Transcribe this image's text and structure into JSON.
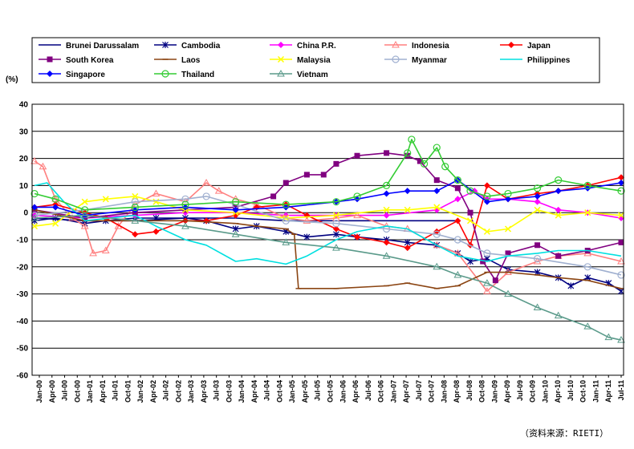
{
  "chart_data": {
    "type": "line",
    "ylabel": "(%)",
    "source": "（资料来源：RIETI）",
    "ylim": [
      -60,
      40
    ],
    "yticks": [
      40,
      30,
      20,
      10,
      0,
      -10,
      -20,
      -30,
      -40,
      -50,
      -60
    ],
    "xticks": [
      "Jan-00",
      "Apr-00",
      "Jul-00",
      "Oct-00",
      "Jan-01",
      "Apr-01",
      "Jul-01",
      "Oct-01",
      "Jan-02",
      "Apr-02",
      "Jul-02",
      "Oct-02",
      "Jan-03",
      "Apr-03",
      "Jul-03",
      "Oct-03",
      "Jan-04",
      "Apr-04",
      "Jul-04",
      "Oct-04",
      "Jan-05",
      "Apr-05",
      "Jul-05",
      "Oct-05",
      "Jan-06",
      "Apr-06",
      "Jul-06",
      "Oct-06",
      "Jan-07",
      "Apr-07",
      "Jul-07",
      "Oct-07",
      "Jan-08",
      "Apr-08",
      "Jul-08",
      "Oct-08",
      "Jan-09",
      "Apr-09",
      "Jul-09",
      "Oct-09",
      "Jan-10",
      "Apr-10",
      "Jul-10",
      "Oct-10",
      "Jan-11",
      "Apr-11",
      "Jul-11"
    ],
    "x_range": [
      "2000-01",
      "2011-09"
    ],
    "grid": "horizontal",
    "legend": "top",
    "series": [
      {
        "name": "Brunei Darussalam",
        "color": "#000080",
        "marker": "none",
        "points": [
          [
            "2000-01",
            -2
          ],
          [
            "2001-01",
            -3
          ],
          [
            "2002-01",
            -3
          ],
          [
            "2003-01",
            -2
          ],
          [
            "2004-01",
            -2
          ],
          [
            "2005-01",
            -3
          ],
          [
            "2006-01",
            -3
          ],
          [
            "2007-01",
            -3
          ],
          [
            "2008-01",
            -3
          ],
          [
            "2008-06",
            -3
          ]
        ]
      },
      {
        "name": "Cambodia",
        "color": "#000080",
        "marker": "asterisk",
        "points": [
          [
            "2000-01",
            -3
          ],
          [
            "2000-06",
            -2
          ],
          [
            "2001-01",
            -4
          ],
          [
            "2001-06",
            -3
          ],
          [
            "2002-01",
            -2
          ],
          [
            "2002-06",
            -2
          ],
          [
            "2003-01",
            -2
          ],
          [
            "2003-06",
            -3
          ],
          [
            "2004-01",
            -6
          ],
          [
            "2004-06",
            -5
          ],
          [
            "2005-01",
            -7
          ],
          [
            "2005-06",
            -9
          ],
          [
            "2006-01",
            -8
          ],
          [
            "2006-06",
            -9
          ],
          [
            "2007-01",
            -10
          ],
          [
            "2007-06",
            -11
          ],
          [
            "2008-01",
            -12
          ],
          [
            "2008-06",
            -15
          ],
          [
            "2008-09",
            -18
          ],
          [
            "2009-01",
            -17
          ],
          [
            "2009-06",
            -21
          ],
          [
            "2010-01",
            -22
          ],
          [
            "2010-06",
            -24
          ],
          [
            "2010-09",
            -27
          ],
          [
            "2011-01",
            -24
          ],
          [
            "2011-06",
            -26
          ],
          [
            "2011-09",
            -29
          ]
        ]
      },
      {
        "name": "China P.R.",
        "color": "#ff00ff",
        "marker": "diamond",
        "points": [
          [
            "2000-01",
            -1
          ],
          [
            "2001-01",
            -2
          ],
          [
            "2002-01",
            -1
          ],
          [
            "2003-01",
            0
          ],
          [
            "2004-01",
            0
          ],
          [
            "2005-01",
            -1
          ],
          [
            "2006-01",
            -1
          ],
          [
            "2007-01",
            -1
          ],
          [
            "2008-01",
            1
          ],
          [
            "2008-06",
            5
          ],
          [
            "2008-10",
            8
          ],
          [
            "2009-01",
            5
          ],
          [
            "2009-06",
            5
          ],
          [
            "2010-01",
            4
          ],
          [
            "2010-06",
            1
          ],
          [
            "2011-01",
            0
          ],
          [
            "2011-09",
            -2
          ]
        ]
      },
      {
        "name": "Indonesia",
        "color": "#ff7f7f",
        "marker": "triangle",
        "points": [
          [
            "2000-01",
            19
          ],
          [
            "2000-03",
            17
          ],
          [
            "2000-06",
            5
          ],
          [
            "2000-10",
            -2
          ],
          [
            "2001-01",
            -5
          ],
          [
            "2001-03",
            -15
          ],
          [
            "2001-06",
            -14
          ],
          [
            "2001-09",
            -5
          ],
          [
            "2002-01",
            3
          ],
          [
            "2002-06",
            7
          ],
          [
            "2003-01",
            4
          ],
          [
            "2003-06",
            11
          ],
          [
            "2003-09",
            8
          ],
          [
            "2004-01",
            5
          ],
          [
            "2004-06",
            3
          ],
          [
            "2005-01",
            -2
          ],
          [
            "2005-06",
            -3
          ],
          [
            "2006-01",
            -2
          ],
          [
            "2006-06",
            -1
          ],
          [
            "2007-01",
            -5
          ],
          [
            "2007-06",
            -6
          ],
          [
            "2008-01",
            -12
          ],
          [
            "2008-06",
            -15
          ],
          [
            "2009-01",
            -29
          ],
          [
            "2009-06",
            -22
          ],
          [
            "2010-01",
            -18
          ],
          [
            "2010-06",
            -16
          ],
          [
            "2011-01",
            -15
          ],
          [
            "2011-09",
            -18
          ]
        ]
      },
      {
        "name": "Japan",
        "color": "#ff0000",
        "marker": "diamond",
        "points": [
          [
            "2000-01",
            2
          ],
          [
            "2000-06",
            3
          ],
          [
            "2001-01",
            0
          ],
          [
            "2001-06",
            -2
          ],
          [
            "2002-01",
            -8
          ],
          [
            "2002-06",
            -7
          ],
          [
            "2003-01",
            -3
          ],
          [
            "2003-06",
            -3
          ],
          [
            "2004-01",
            -1
          ],
          [
            "2004-06",
            2
          ],
          [
            "2005-01",
            3
          ],
          [
            "2005-06",
            -1
          ],
          [
            "2006-01",
            -6
          ],
          [
            "2006-06",
            -9
          ],
          [
            "2007-01",
            -11
          ],
          [
            "2007-06",
            -13
          ],
          [
            "2008-01",
            -7
          ],
          [
            "2008-06",
            -3
          ],
          [
            "2008-09",
            -12
          ],
          [
            "2009-01",
            10
          ],
          [
            "2009-06",
            5
          ],
          [
            "2010-01",
            7
          ],
          [
            "2010-06",
            8
          ],
          [
            "2011-01",
            10
          ],
          [
            "2011-09",
            13
          ]
        ]
      },
      {
        "name": "South Korea",
        "color": "#800080",
        "marker": "square",
        "points": [
          [
            "2000-01",
            1
          ],
          [
            "2001-01",
            -2
          ],
          [
            "2002-01",
            0
          ],
          [
            "2003-01",
            1
          ],
          [
            "2004-01",
            2
          ],
          [
            "2004-10",
            6
          ],
          [
            "2005-01",
            11
          ],
          [
            "2005-06",
            14
          ],
          [
            "2005-10",
            14
          ],
          [
            "2006-01",
            18
          ],
          [
            "2006-06",
            21
          ],
          [
            "2007-01",
            22
          ],
          [
            "2007-06",
            21
          ],
          [
            "2007-09",
            19
          ],
          [
            "2008-01",
            12
          ],
          [
            "2008-06",
            9
          ],
          [
            "2008-09",
            0
          ],
          [
            "2008-12",
            -18
          ],
          [
            "2009-03",
            -25
          ],
          [
            "2009-06",
            -15
          ],
          [
            "2010-01",
            -12
          ],
          [
            "2010-06",
            -16
          ],
          [
            "2011-01",
            -14
          ],
          [
            "2011-09",
            -11
          ]
        ]
      },
      {
        "name": "Laos",
        "color": "#8b4513",
        "marker": "dash",
        "points": [
          [
            "2000-01",
            1
          ],
          [
            "2001-01",
            -3
          ],
          [
            "2002-01",
            -3
          ],
          [
            "2003-01",
            -3
          ],
          [
            "2004-01",
            -4
          ],
          [
            "2004-06",
            -5
          ],
          [
            "2005-01",
            -6
          ],
          [
            "2005-03",
            -8
          ],
          [
            "2005-04",
            -28
          ],
          [
            "2006-01",
            -28
          ],
          [
            "2007-01",
            -27
          ],
          [
            "2007-06",
            -26
          ],
          [
            "2008-01",
            -28
          ],
          [
            "2008-06",
            -27
          ],
          [
            "2009-01",
            -22
          ],
          [
            "2009-06",
            -22
          ],
          [
            "2010-01",
            -23
          ],
          [
            "2010-06",
            -24
          ],
          [
            "2011-01",
            -25
          ],
          [
            "2011-09",
            -28
          ]
        ]
      },
      {
        "name": "Malaysia",
        "color": "#ffff00",
        "marker": "x",
        "points": [
          [
            "2000-01",
            -5
          ],
          [
            "2000-06",
            -4
          ],
          [
            "2001-01",
            4
          ],
          [
            "2001-06",
            5
          ],
          [
            "2002-01",
            6
          ],
          [
            "2002-06",
            4
          ],
          [
            "2003-01",
            1
          ],
          [
            "2004-01",
            0
          ],
          [
            "2005-01",
            -2
          ],
          [
            "2006-01",
            -1
          ],
          [
            "2007-01",
            1
          ],
          [
            "2007-06",
            1
          ],
          [
            "2008-01",
            2
          ],
          [
            "2008-09",
            -3
          ],
          [
            "2009-01",
            -7
          ],
          [
            "2009-06",
            -6
          ],
          [
            "2010-01",
            1
          ],
          [
            "2010-06",
            -1
          ],
          [
            "2011-01",
            0
          ],
          [
            "2011-09",
            -1
          ]
        ]
      },
      {
        "name": "Myanmar",
        "color": "#a0b0d0",
        "marker": "circle",
        "points": [
          [
            "2000-01",
            -1
          ],
          [
            "2001-01",
            1
          ],
          [
            "2002-01",
            4
          ],
          [
            "2003-01",
            5
          ],
          [
            "2003-06",
            6
          ],
          [
            "2004-01",
            3
          ],
          [
            "2005-01",
            -3
          ],
          [
            "2006-01",
            -4
          ],
          [
            "2007-01",
            -6
          ],
          [
            "2008-01",
            -8
          ],
          [
            "2008-06",
            -10
          ],
          [
            "2009-01",
            -15
          ],
          [
            "2010-01",
            -17
          ],
          [
            "2011-01",
            -20
          ],
          [
            "2011-09",
            -23
          ]
        ]
      },
      {
        "name": "Philippines",
        "color": "#00e0e0",
        "marker": "none",
        "points": [
          [
            "2000-01",
            10
          ],
          [
            "2000-04",
            11
          ],
          [
            "2000-08",
            4
          ],
          [
            "2001-01",
            -3
          ],
          [
            "2002-01",
            -1
          ],
          [
            "2002-06",
            -5
          ],
          [
            "2003-01",
            -10
          ],
          [
            "2003-06",
            -12
          ],
          [
            "2004-01",
            -18
          ],
          [
            "2004-06",
            -17
          ],
          [
            "2005-01",
            -19
          ],
          [
            "2005-06",
            -16
          ],
          [
            "2006-01",
            -10
          ],
          [
            "2006-06",
            -7
          ],
          [
            "2007-01",
            -5
          ],
          [
            "2007-06",
            -6
          ],
          [
            "2008-01",
            -12
          ],
          [
            "2008-06",
            -16
          ],
          [
            "2009-01",
            -18
          ],
          [
            "2009-06",
            -16
          ],
          [
            "2010-01",
            -15
          ],
          [
            "2010-06",
            -14
          ],
          [
            "2011-01",
            -14
          ],
          [
            "2011-09",
            -16
          ]
        ]
      },
      {
        "name": "Singapore",
        "color": "#0000ff",
        "marker": "diamond",
        "points": [
          [
            "2000-01",
            2
          ],
          [
            "2000-06",
            2
          ],
          [
            "2001-01",
            -1
          ],
          [
            "2002-01",
            1
          ],
          [
            "2003-01",
            2
          ],
          [
            "2004-01",
            1
          ],
          [
            "2005-01",
            2
          ],
          [
            "2006-01",
            4
          ],
          [
            "2006-06",
            5
          ],
          [
            "2007-01",
            7
          ],
          [
            "2007-06",
            8
          ],
          [
            "2008-01",
            8
          ],
          [
            "2008-06",
            12
          ],
          [
            "2009-01",
            4
          ],
          [
            "2009-06",
            5
          ],
          [
            "2010-01",
            6
          ],
          [
            "2010-06",
            8
          ],
          [
            "2011-01",
            9
          ],
          [
            "2011-09",
            11
          ]
        ]
      },
      {
        "name": "Thailand",
        "color": "#33cc33",
        "marker": "circle",
        "points": [
          [
            "2000-01",
            7
          ],
          [
            "2000-06",
            5
          ],
          [
            "2001-01",
            1
          ],
          [
            "2002-01",
            2
          ],
          [
            "2003-01",
            3
          ],
          [
            "2004-01",
            4
          ],
          [
            "2005-01",
            3
          ],
          [
            "2006-01",
            4
          ],
          [
            "2006-06",
            6
          ],
          [
            "2007-01",
            10
          ],
          [
            "2007-06",
            22
          ],
          [
            "2007-07",
            27
          ],
          [
            "2007-10",
            18
          ],
          [
            "2008-01",
            24
          ],
          [
            "2008-03",
            17
          ],
          [
            "2008-06",
            12
          ],
          [
            "2008-09",
            8
          ],
          [
            "2009-01",
            6
          ],
          [
            "2009-06",
            7
          ],
          [
            "2010-01",
            9
          ],
          [
            "2010-06",
            12
          ],
          [
            "2011-01",
            10
          ],
          [
            "2011-09",
            8
          ]
        ]
      },
      {
        "name": "Vietnam",
        "color": "#5a9a8a",
        "marker": "triangle",
        "points": [
          [
            "2000-01",
            -2
          ],
          [
            "2001-01",
            -1
          ],
          [
            "2002-01",
            -3
          ],
          [
            "2003-01",
            -5
          ],
          [
            "2004-01",
            -8
          ],
          [
            "2005-01",
            -11
          ],
          [
            "2006-01",
            -13
          ],
          [
            "2007-01",
            -16
          ],
          [
            "2008-01",
            -20
          ],
          [
            "2008-06",
            -23
          ],
          [
            "2009-01",
            -26
          ],
          [
            "2009-06",
            -30
          ],
          [
            "2010-01",
            -35
          ],
          [
            "2010-06",
            -38
          ],
          [
            "2011-01",
            -42
          ],
          [
            "2011-06",
            -46
          ],
          [
            "2011-09",
            -47
          ]
        ]
      }
    ]
  }
}
